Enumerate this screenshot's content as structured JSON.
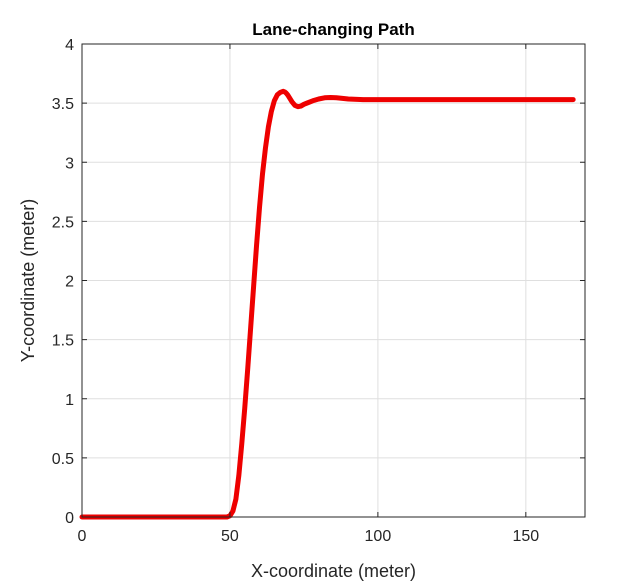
{
  "chart_data": {
    "type": "line",
    "title": "Lane-changing Path",
    "xlabel": "X-coordinate (meter)",
    "ylabel": "Y-coordinate (meter)",
    "xlim": [
      0,
      170
    ],
    "ylim": [
      0,
      4
    ],
    "xticks": [
      0,
      50,
      100,
      150
    ],
    "yticks": [
      0,
      0.5,
      1,
      1.5,
      2,
      2.5,
      3,
      3.5,
      4
    ],
    "xtick_labels": [
      "0",
      "50",
      "100",
      "150"
    ],
    "ytick_labels": [
      "0",
      "0.5",
      "1",
      "1.5",
      "2",
      "2.5",
      "3",
      "3.5",
      "4"
    ],
    "grid": true,
    "series": [
      {
        "color": "#ee0000",
        "x": [
          0,
          20,
          40,
          49,
          50,
          51,
          52,
          53,
          54,
          55,
          56,
          57,
          58,
          59,
          60,
          61,
          62,
          63,
          64,
          65,
          66,
          67,
          68,
          68.5,
          69,
          69.5,
          70,
          71,
          72,
          73,
          74,
          75,
          76,
          78,
          80,
          82,
          84,
          86,
          88,
          90,
          95,
          100,
          120,
          140,
          166
        ],
        "y": [
          0,
          0,
          0,
          0,
          0.01,
          0.05,
          0.15,
          0.35,
          0.62,
          0.92,
          1.25,
          1.6,
          1.95,
          2.3,
          2.62,
          2.9,
          3.12,
          3.3,
          3.43,
          3.52,
          3.57,
          3.59,
          3.6,
          3.595,
          3.585,
          3.57,
          3.55,
          3.51,
          3.48,
          3.47,
          3.475,
          3.49,
          3.5,
          3.52,
          3.535,
          3.545,
          3.548,
          3.545,
          3.54,
          3.535,
          3.53,
          3.53,
          3.53,
          3.53,
          3.53
        ]
      }
    ]
  }
}
